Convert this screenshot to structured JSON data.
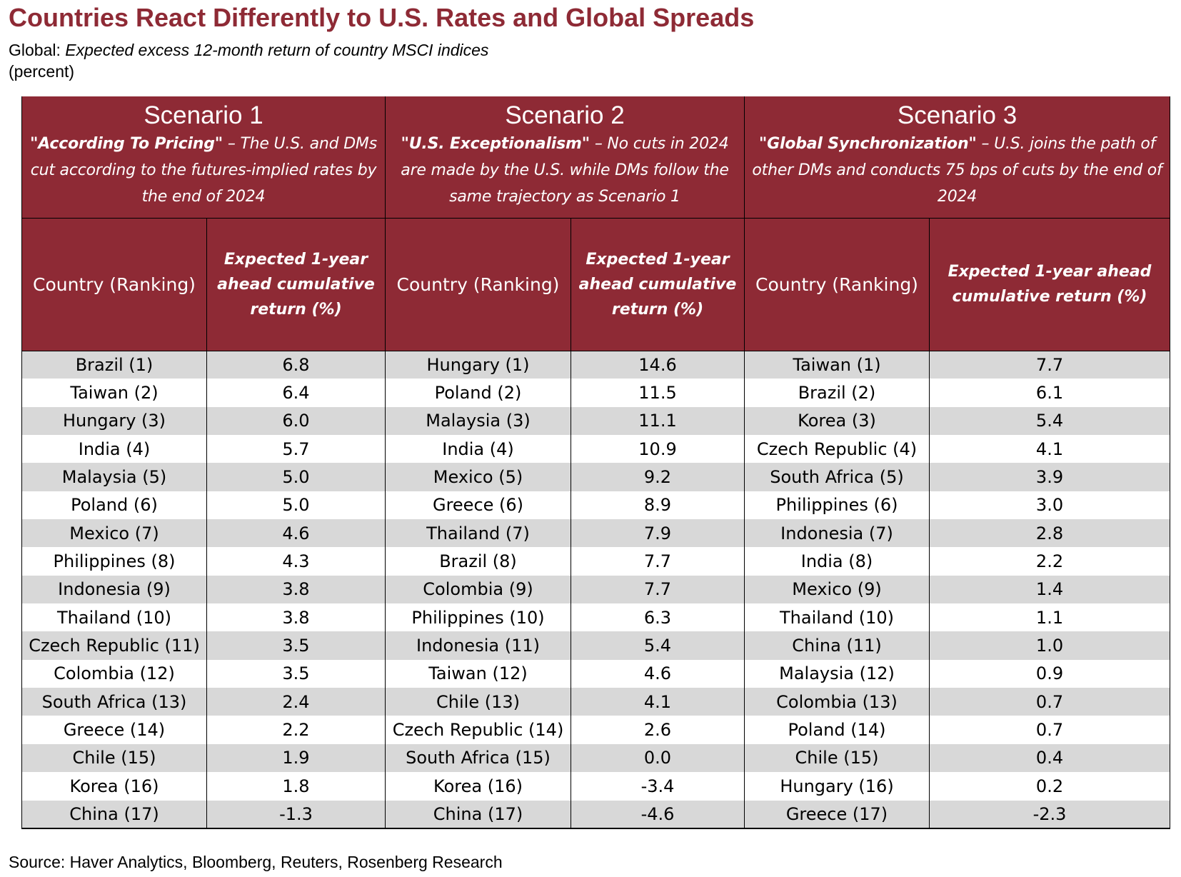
{
  "title": "Countries React Differently to U.S. Rates and Global Spreads",
  "subtitle_prefix": "Global:",
  "subtitle_italic": "Expected excess 12-month return of country MSCI indices",
  "subtitle_unit": "(percent)",
  "source": "Source: Haver Analytics, Bloomberg, Reuters, Rosenberg Research",
  "chart_data": {
    "type": "table",
    "title": "Countries React Differently to U.S. Rates and Global Spreads",
    "subtitle": "Global: Expected excess 12-month return of country MSCI indices (percent)",
    "colors": {
      "header_bg": "#8e2a35",
      "header_text": "#ffffff",
      "title": "#8e2a35",
      "stripe": "#d8d8d8"
    },
    "column_headers": {
      "country": "Country (Ranking)",
      "return": "Expected 1-year ahead cumulative return (%)"
    },
    "scenarios": [
      {
        "name": "Scenario 1",
        "label": "\"According To Pricing\"",
        "description": " – The U.S. and DMs cut according to the futures-implied rates by the end of 2024",
        "rows": [
          {
            "country": "Brazil (1)",
            "value": "6.8"
          },
          {
            "country": "Taiwan (2)",
            "value": "6.4"
          },
          {
            "country": "Hungary (3)",
            "value": "6.0"
          },
          {
            "country": "India (4)",
            "value": "5.7"
          },
          {
            "country": "Malaysia (5)",
            "value": "5.0"
          },
          {
            "country": "Poland (6)",
            "value": "5.0"
          },
          {
            "country": "Mexico (7)",
            "value": "4.6"
          },
          {
            "country": "Philippines (8)",
            "value": "4.3"
          },
          {
            "country": "Indonesia (9)",
            "value": "3.8"
          },
          {
            "country": "Thailand (10)",
            "value": "3.8"
          },
          {
            "country": "Czech Republic (11)",
            "value": "3.5"
          },
          {
            "country": "Colombia (12)",
            "value": "3.5"
          },
          {
            "country": "South Africa (13)",
            "value": "2.4"
          },
          {
            "country": "Greece (14)",
            "value": "2.2"
          },
          {
            "country": "Chile (15)",
            "value": "1.9"
          },
          {
            "country": "Korea (16)",
            "value": "1.8"
          },
          {
            "country": "China (17)",
            "value": "-1.3"
          }
        ]
      },
      {
        "name": "Scenario 2",
        "label": "\"U.S. Exceptionalism\"",
        "description": " – No cuts in 2024 are made by the U.S. while DMs follow the same trajectory as Scenario 1",
        "rows": [
          {
            "country": "Hungary (1)",
            "value": "14.6"
          },
          {
            "country": "Poland (2)",
            "value": "11.5"
          },
          {
            "country": "Malaysia (3)",
            "value": "11.1"
          },
          {
            "country": "India (4)",
            "value": "10.9"
          },
          {
            "country": "Mexico (5)",
            "value": "9.2"
          },
          {
            "country": "Greece (6)",
            "value": "8.9"
          },
          {
            "country": "Thailand (7)",
            "value": "7.9"
          },
          {
            "country": "Brazil (8)",
            "value": "7.7"
          },
          {
            "country": "Colombia (9)",
            "value": "7.7"
          },
          {
            "country": "Philippines (10)",
            "value": "6.3"
          },
          {
            "country": "Indonesia (11)",
            "value": "5.4"
          },
          {
            "country": "Taiwan (12)",
            "value": "4.6"
          },
          {
            "country": "Chile (13)",
            "value": "4.1"
          },
          {
            "country": "Czech Republic (14)",
            "value": "2.6"
          },
          {
            "country": "South Africa (15)",
            "value": "0.0"
          },
          {
            "country": "Korea (16)",
            "value": "-3.4"
          },
          {
            "country": "China (17)",
            "value": "-4.6"
          }
        ]
      },
      {
        "name": "Scenario 3",
        "label": "\"Global Synchronization\"",
        "description": " – U.S. joins the path of other DMs and conducts 75 bps of cuts by the end of 2024",
        "rows": [
          {
            "country": "Taiwan (1)",
            "value": "7.7"
          },
          {
            "country": "Brazil (2)",
            "value": "6.1"
          },
          {
            "country": "Korea (3)",
            "value": "5.4"
          },
          {
            "country": "Czech Republic (4)",
            "value": "4.1"
          },
          {
            "country": "South Africa (5)",
            "value": "3.9"
          },
          {
            "country": "Philippines (6)",
            "value": "3.0"
          },
          {
            "country": "Indonesia (7)",
            "value": "2.8"
          },
          {
            "country": "India (8)",
            "value": "2.2"
          },
          {
            "country": "Mexico (9)",
            "value": "1.4"
          },
          {
            "country": "Thailand (10)",
            "value": "1.1"
          },
          {
            "country": "China (11)",
            "value": "1.0"
          },
          {
            "country": "Malaysia (12)",
            "value": "0.9"
          },
          {
            "country": "Colombia (13)",
            "value": "0.7"
          },
          {
            "country": "Poland (14)",
            "value": "0.7"
          },
          {
            "country": "Chile (15)",
            "value": "0.4"
          },
          {
            "country": "Hungary (16)",
            "value": "0.2"
          },
          {
            "country": "Greece (17)",
            "value": "-2.3"
          }
        ]
      }
    ]
  }
}
